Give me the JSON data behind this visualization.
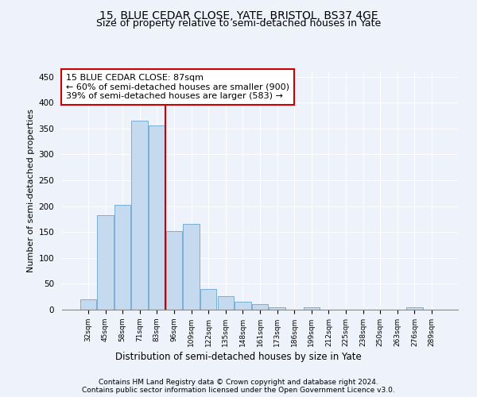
{
  "title": "15, BLUE CEDAR CLOSE, YATE, BRISTOL, BS37 4GE",
  "subtitle": "Size of property relative to semi-detached houses in Yate",
  "xlabel": "Distribution of semi-detached houses by size in Yate",
  "ylabel": "Number of semi-detached properties",
  "categories": [
    "32sqm",
    "45sqm",
    "58sqm",
    "71sqm",
    "83sqm",
    "96sqm",
    "109sqm",
    "122sqm",
    "135sqm",
    "148sqm",
    "161sqm",
    "173sqm",
    "186sqm",
    "199sqm",
    "212sqm",
    "225sqm",
    "238sqm",
    "250sqm",
    "263sqm",
    "276sqm",
    "289sqm"
  ],
  "values": [
    20,
    183,
    202,
    365,
    355,
    152,
    165,
    40,
    26,
    15,
    10,
    5,
    0,
    5,
    0,
    0,
    0,
    0,
    0,
    5,
    0
  ],
  "bar_color": "#c5d9ef",
  "bar_edge_color": "#7aafd4",
  "property_line_x": 4.5,
  "annotation_text": "15 BLUE CEDAR CLOSE: 87sqm\n← 60% of semi-detached houses are smaller (900)\n39% of semi-detached houses are larger (583) →",
  "annotation_box_color": "#ffffff",
  "annotation_box_edge": "#cc0000",
  "vline_color": "#cc0000",
  "ylim": [
    0,
    460
  ],
  "yticks": [
    0,
    50,
    100,
    150,
    200,
    250,
    300,
    350,
    400,
    450
  ],
  "background_color": "#eef2fa",
  "footnote1": "Contains HM Land Registry data © Crown copyright and database right 2024.",
  "footnote2": "Contains public sector information licensed under the Open Government Licence v3.0.",
  "title_fontsize": 10,
  "subtitle_fontsize": 9,
  "annotation_fontsize": 8,
  "xlabel_fontsize": 8.5,
  "ylabel_fontsize": 8,
  "footnote_fontsize": 6.5
}
